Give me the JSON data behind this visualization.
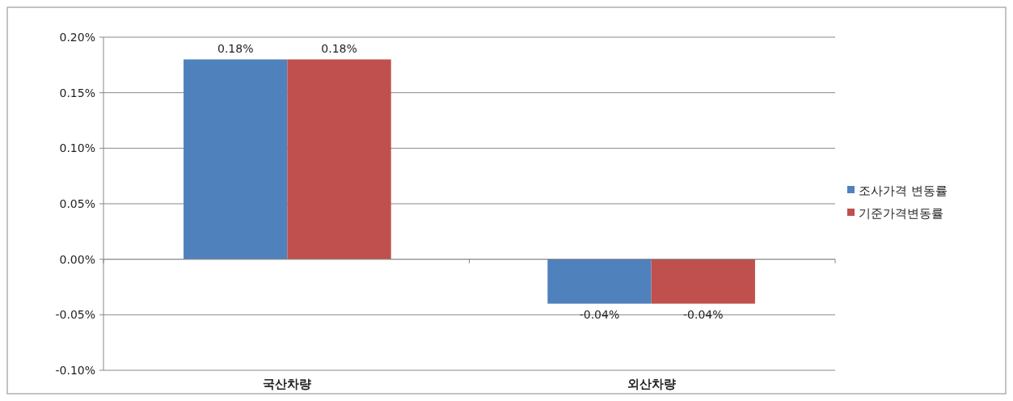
{
  "chart_data": {
    "type": "bar",
    "categories": [
      "국산차량",
      "외산차량"
    ],
    "series": [
      {
        "name": "조사가격 변동률",
        "color": "#4f81bd",
        "values": [
          0.18,
          -0.04
        ],
        "value_labels": [
          "0.18%",
          "-0.04%"
        ]
      },
      {
        "name": "기준가격변동률",
        "color": "#c0504d",
        "values": [
          0.18,
          -0.04
        ],
        "value_labels": [
          "0.18%",
          "-0.04%"
        ]
      }
    ],
    "ylim": [
      -0.1,
      0.2
    ],
    "yticks": [
      {
        "value": -0.1,
        "label": "-0.10%"
      },
      {
        "value": -0.05,
        "label": "-0.05%"
      },
      {
        "value": 0,
        "label": "0.00%"
      },
      {
        "value": 0.05,
        "label": "0.05%"
      },
      {
        "value": 0.1,
        "label": "0.10%"
      },
      {
        "value": 0.15,
        "label": "0.15%"
      },
      {
        "value": 0.2,
        "label": "0.20%"
      }
    ],
    "grid": "y",
    "legend": "right"
  }
}
